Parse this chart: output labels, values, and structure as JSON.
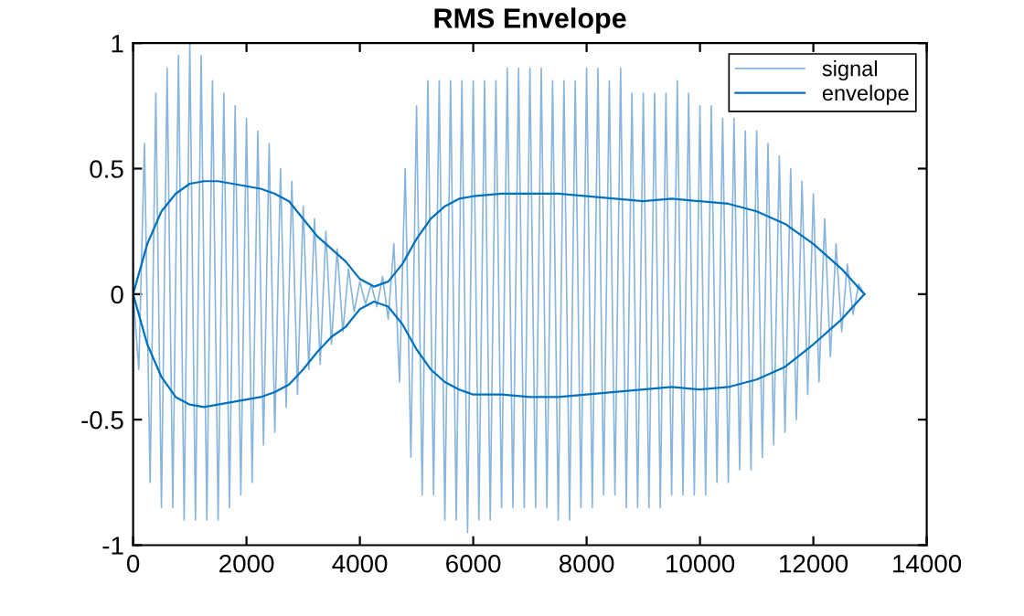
{
  "chart_data": {
    "type": "line",
    "title": "RMS Envelope",
    "xlim": [
      0,
      14000
    ],
    "xticks": [
      0,
      2000,
      4000,
      6000,
      8000,
      10000,
      12000,
      14000
    ],
    "ylim": [
      -1,
      1
    ],
    "yticks": [
      -1,
      -0.5,
      0,
      0.5,
      1
    ],
    "grid": false,
    "legend": "top right",
    "line_style": "solid",
    "marker": "none",
    "series": [
      {
        "name": "signal",
        "color": "#8ab6de",
        "x": [
          0,
          100,
          200,
          300,
          400,
          500,
          600,
          700,
          800,
          900,
          1000,
          1100,
          1200,
          1300,
          1400,
          1500,
          1600,
          1700,
          1800,
          1900,
          2000,
          2100,
          2200,
          2300,
          2400,
          2500,
          2600,
          2700,
          2800,
          2900,
          3000,
          3100,
          3200,
          3300,
          3400,
          3500,
          3600,
          3700,
          3800,
          3900,
          4000,
          4100,
          4200,
          4300,
          4400,
          4500,
          4600,
          4700,
          4800,
          4900,
          5000,
          5100,
          5200,
          5300,
          5400,
          5500,
          5600,
          5700,
          5800,
          5900,
          6000,
          6100,
          6200,
          6300,
          6400,
          6500,
          6600,
          6700,
          6800,
          6900,
          7000,
          7100,
          7200,
          7300,
          7400,
          7500,
          7600,
          7700,
          7800,
          7900,
          8000,
          8100,
          8200,
          8300,
          8400,
          8500,
          8600,
          8700,
          8800,
          8900,
          9000,
          9100,
          9200,
          9300,
          9400,
          9500,
          9600,
          9700,
          9800,
          9900,
          10000,
          10100,
          10200,
          10300,
          10400,
          10500,
          10600,
          10700,
          10800,
          10900,
          11000,
          11100,
          11200,
          11300,
          11400,
          11500,
          11600,
          11700,
          11800,
          11900,
          12000,
          12100,
          12200,
          12300,
          12400,
          12500,
          12600,
          12700,
          12800,
          12900
        ],
        "values": [
          0,
          -0.3,
          0.6,
          -0.75,
          0.8,
          -0.85,
          0.9,
          -0.85,
          0.95,
          -0.9,
          1.0,
          -0.9,
          0.95,
          -0.9,
          0.85,
          -0.9,
          0.8,
          -0.85,
          0.75,
          -0.8,
          0.7,
          -0.75,
          0.65,
          -0.6,
          0.6,
          -0.55,
          0.5,
          -0.45,
          0.45,
          -0.4,
          0.35,
          -0.3,
          0.3,
          -0.28,
          0.25,
          -0.2,
          0.18,
          -0.15,
          0.1,
          -0.07,
          0.05,
          -0.04,
          0.04,
          -0.05,
          0.07,
          -0.1,
          0.2,
          -0.35,
          0.5,
          -0.65,
          0.75,
          -0.8,
          0.85,
          -0.8,
          0.85,
          -0.9,
          0.85,
          -0.9,
          0.85,
          -0.95,
          0.85,
          -0.9,
          0.85,
          -0.9,
          0.85,
          -0.85,
          0.9,
          -0.85,
          0.9,
          -0.85,
          0.9,
          -0.85,
          0.9,
          -0.85,
          0.85,
          -0.9,
          0.85,
          -0.9,
          0.85,
          -0.85,
          0.9,
          -0.85,
          0.9,
          -0.8,
          0.85,
          -0.8,
          0.9,
          -0.85,
          0.8,
          -0.85,
          0.8,
          -0.85,
          0.8,
          -0.85,
          0.8,
          -0.8,
          0.85,
          -0.8,
          0.8,
          -0.8,
          0.75,
          -0.8,
          0.75,
          -0.75,
          0.7,
          -0.75,
          0.7,
          -0.7,
          0.65,
          -0.7,
          0.65,
          -0.65,
          0.6,
          -0.6,
          0.55,
          -0.55,
          0.5,
          -0.5,
          0.45,
          -0.4,
          0.4,
          -0.35,
          0.3,
          -0.25,
          0.2,
          -0.15,
          0.12,
          -0.08,
          0.04,
          0
        ]
      },
      {
        "name": "envelope",
        "color": "#0072bd",
        "x": [
          0,
          250,
          500,
          750,
          1000,
          1250,
          1500,
          1750,
          2000,
          2250,
          2500,
          2750,
          3000,
          3250,
          3500,
          3750,
          4000,
          4250,
          4500,
          4750,
          5000,
          5250,
          5500,
          5750,
          6000,
          6500,
          7000,
          7500,
          8000,
          8500,
          9000,
          9500,
          10000,
          10500,
          11000,
          11500,
          12000,
          12500,
          12900
        ],
        "values": [
          0,
          0.2,
          0.33,
          0.4,
          0.44,
          0.45,
          0.45,
          0.44,
          0.43,
          0.42,
          0.4,
          0.37,
          0.3,
          0.23,
          0.18,
          0.13,
          0.06,
          0.03,
          0.05,
          0.12,
          0.22,
          0.3,
          0.35,
          0.38,
          0.39,
          0.4,
          0.4,
          0.4,
          0.39,
          0.38,
          0.37,
          0.38,
          0.37,
          0.36,
          0.33,
          0.28,
          0.2,
          0.1,
          0
        ]
      },
      {
        "color": "#0072bd",
        "x": [
          0,
          250,
          500,
          750,
          1000,
          1250,
          1500,
          1750,
          2000,
          2250,
          2500,
          2750,
          3000,
          3250,
          3500,
          3750,
          4000,
          4250,
          4500,
          4750,
          5000,
          5250,
          5500,
          5750,
          6000,
          6500,
          7000,
          7500,
          8000,
          8500,
          9000,
          9500,
          10000,
          10500,
          11000,
          11500,
          12000,
          12500,
          12900
        ],
        "values": [
          0,
          -0.2,
          -0.33,
          -0.41,
          -0.44,
          -0.45,
          -0.44,
          -0.43,
          -0.42,
          -0.41,
          -0.39,
          -0.36,
          -0.3,
          -0.23,
          -0.17,
          -0.13,
          -0.06,
          -0.03,
          -0.05,
          -0.12,
          -0.22,
          -0.3,
          -0.35,
          -0.38,
          -0.4,
          -0.4,
          -0.41,
          -0.41,
          -0.4,
          -0.39,
          -0.38,
          -0.37,
          -0.38,
          -0.37,
          -0.34,
          -0.29,
          -0.2,
          -0.1,
          0
        ]
      }
    ]
  }
}
